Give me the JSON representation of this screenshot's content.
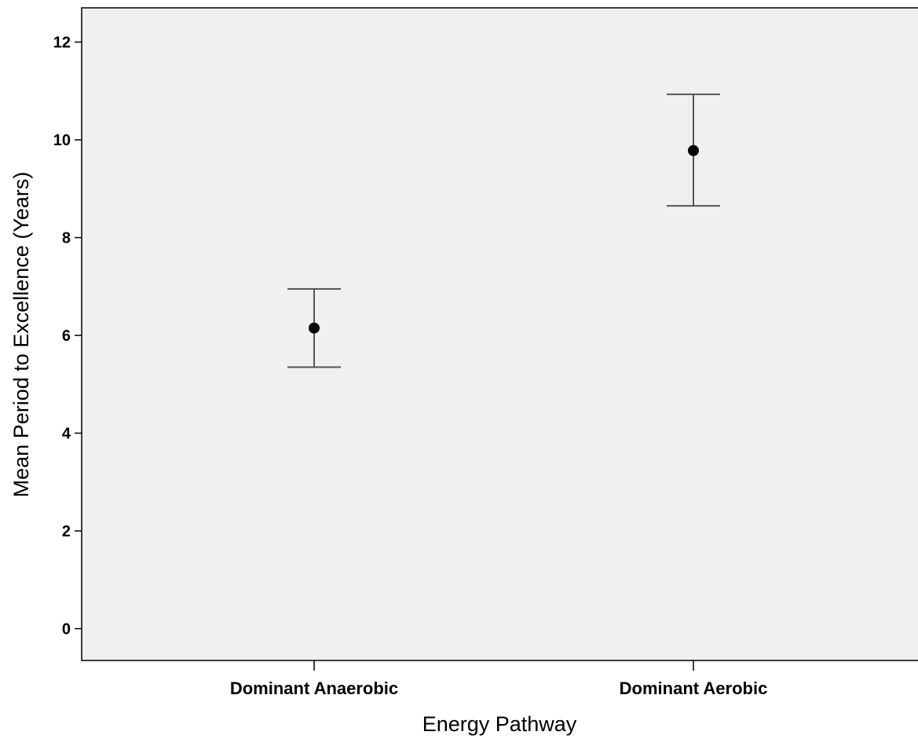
{
  "chart_data": {
    "type": "errorbar",
    "xlabel": "Energy Pathway",
    "ylabel": "Mean Period to Excellence (Years)",
    "categories": [
      "Dominant Anaerobic",
      "Dominant Aerobic"
    ],
    "series": [
      {
        "mean": [
          6.15,
          9.78
        ],
        "lower": [
          5.35,
          8.65
        ],
        "upper": [
          6.95,
          10.93
        ]
      }
    ],
    "ylim": [
      -0.65,
      12.7
    ],
    "yticks": [
      0,
      2,
      4,
      6,
      8,
      10,
      12
    ],
    "grid": false,
    "legend": "none",
    "colors": {
      "plot_background": "#f0f0f0",
      "frame": "#000000",
      "marker": "#000000",
      "error_bar": "#555555"
    }
  }
}
